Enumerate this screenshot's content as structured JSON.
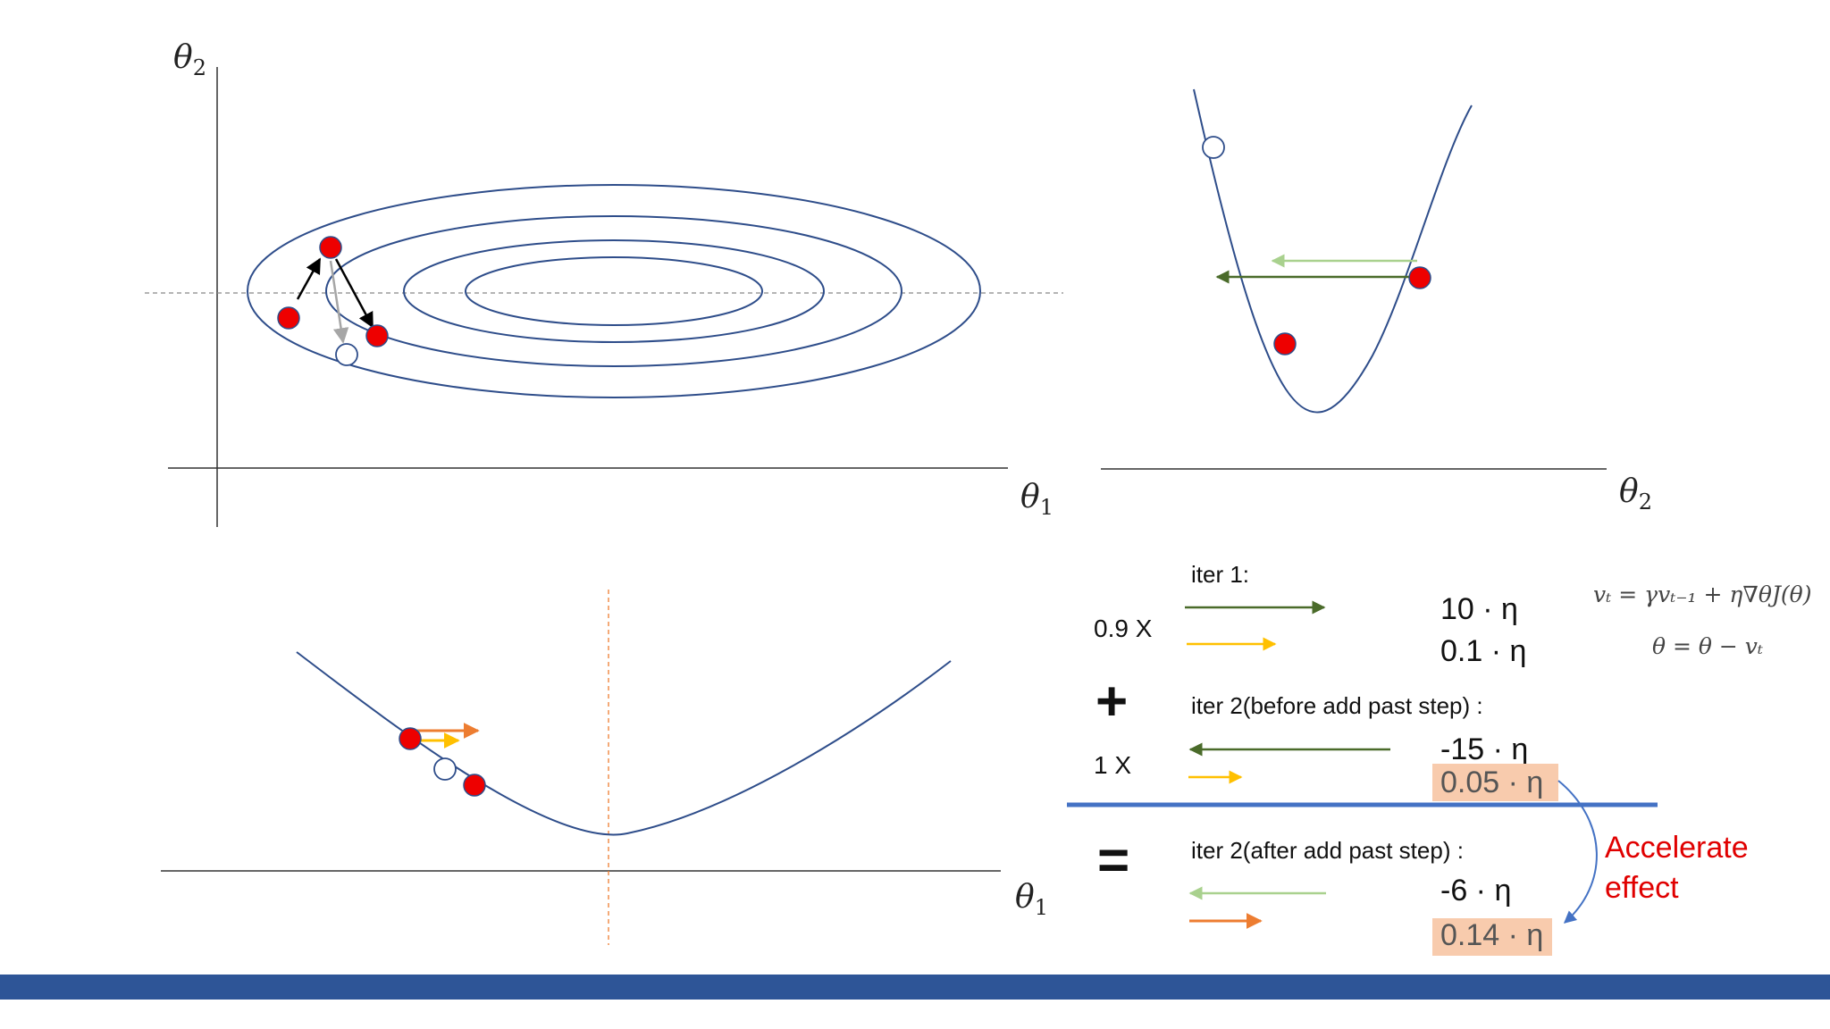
{
  "colors": {
    "navy": "#2e4d8a",
    "axis": "#333333",
    "red_dot": "#ee0000",
    "dark_green": "#4a6b2a",
    "light_green": "#a9d18e",
    "yellow": "#ffc000",
    "orange": "#ed7d31",
    "highlight": "#f8cbad",
    "divider": "#4472c4",
    "accent_red": "#e00000",
    "bottom_bar": "#2e5597",
    "guide": "#888888"
  },
  "contour_panel": {
    "y_axis_label": "θ",
    "y_axis_sub": "2",
    "x_axis_label": "θ",
    "x_axis_sub": "1"
  },
  "theta2_panel": {
    "x_axis_label": "θ",
    "x_axis_sub": "2"
  },
  "theta1_panel": {
    "x_axis_label": "θ",
    "x_axis_sub": "1"
  },
  "momentum": {
    "iter1_label": "iter 1:",
    "coef_a": "0.9 X",
    "iter1_val_a": "10 · η",
    "iter1_val_b": "0.1 · η",
    "plus_sign": "+",
    "iter2_before_label": "iter 2(before add past step) :",
    "coef_b": "1 X",
    "iter2_before_val_a": "-15 · η",
    "iter2_before_val_b": "0.05 · η",
    "equals_sign": "=",
    "iter2_after_label": "iter 2(after add past step) :",
    "iter2_after_val_a": "-6 · η",
    "iter2_after_val_b": "0.14 · η",
    "effect_line1": "Accelerate",
    "effect_line2": "effect"
  },
  "formulas": {
    "velocity": "vₜ = γvₜ₋₁ + η∇θJ(θ)",
    "update": "θ = θ − vₜ"
  }
}
